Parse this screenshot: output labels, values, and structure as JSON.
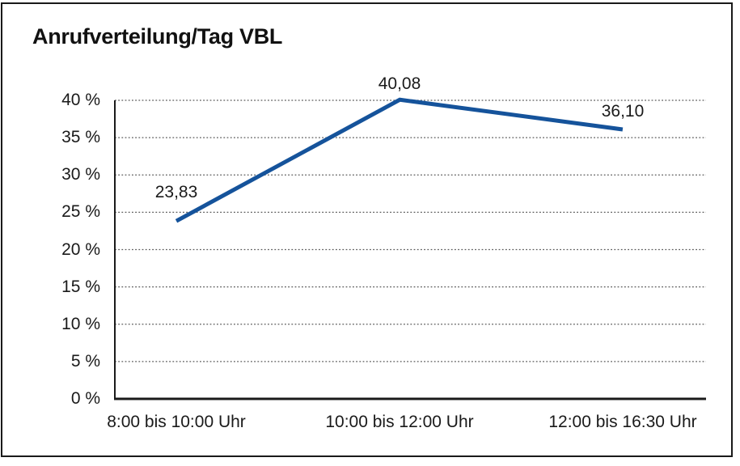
{
  "chart_data": {
    "type": "line",
    "title": "Anrufverteilung/Tag VBL",
    "categories": [
      "8:00 bis 10:00 Uhr",
      "10:00 bis 12:00 Uhr",
      "12:00 bis 16:30 Uhr"
    ],
    "values": [
      23.83,
      40.08,
      36.1
    ],
    "point_labels": [
      "23,83",
      "40,08",
      "36,10"
    ],
    "xlabel": "",
    "ylabel": "",
    "ylim": [
      0,
      40
    ],
    "yticks": [
      0,
      5,
      10,
      15,
      20,
      25,
      30,
      35,
      40
    ],
    "ytick_labels": [
      "0 %",
      "5 %",
      "10 %",
      "15 %",
      "20 %",
      "25 %",
      "30 %",
      "35 %",
      "40 %"
    ],
    "grid": "horizontal-dotted",
    "legend": "none",
    "colors": {
      "line": "#15539b",
      "gridline": "#595959",
      "axis": "#1a1a1a",
      "text": "#1a1a1a",
      "background": "#ffffff",
      "border": "#1a1a1a"
    }
  }
}
